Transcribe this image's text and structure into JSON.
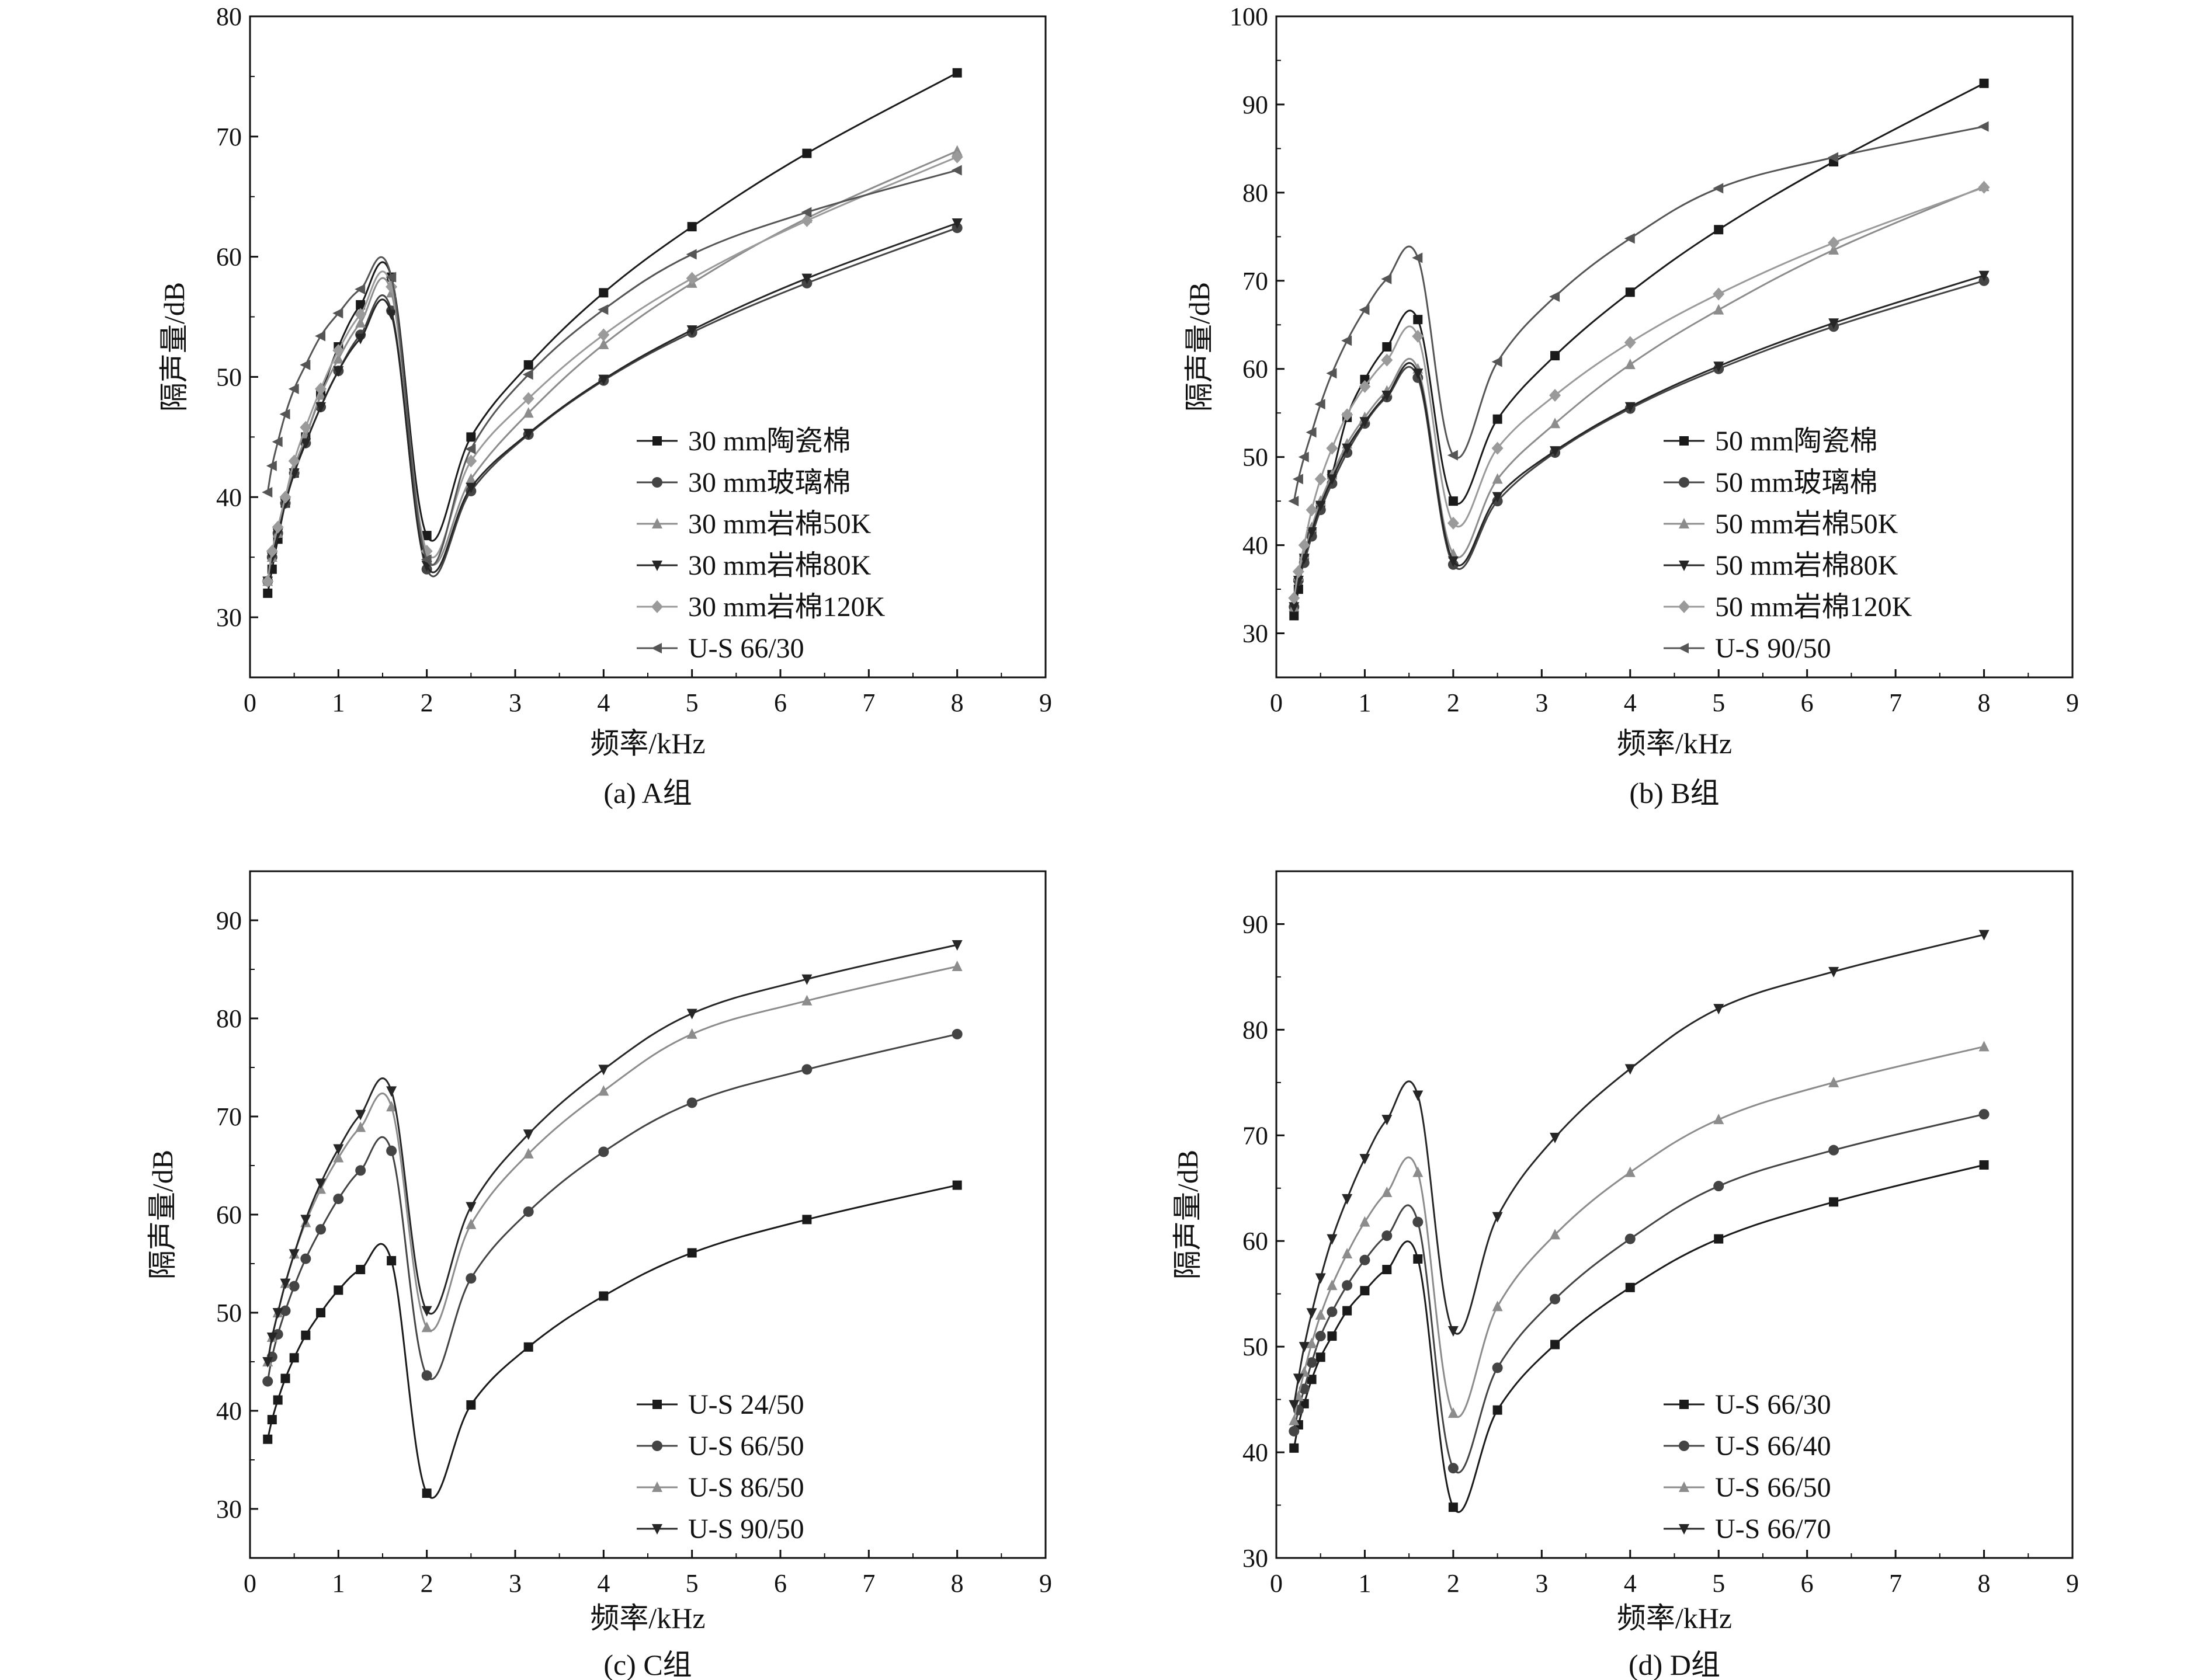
{
  "chart_data": [
    {
      "type": "line",
      "caption": "(a) A组",
      "xlabel": "频率/kHz",
      "ylabel": "隔声量/dB",
      "xlim": [
        0,
        9
      ],
      "ylim": [
        25,
        80
      ],
      "xticks": [
        0,
        1,
        2,
        3,
        4,
        5,
        6,
        7,
        8,
        9
      ],
      "yticks": [
        30,
        40,
        50,
        60,
        70,
        80
      ],
      "grid": false,
      "legend_position": "bottom-right",
      "x": [
        0.2,
        0.25,
        0.315,
        0.4,
        0.5,
        0.63,
        0.8,
        1,
        1.25,
        1.6,
        2,
        2.5,
        3.15,
        4,
        5,
        6.3,
        8
      ],
      "series": [
        {
          "name": "30 mm陶瓷棉",
          "marker": "square",
          "color": "#1a1a1a",
          "values": [
            32.0,
            34.0,
            36.5,
            39.5,
            42.0,
            45.0,
            48.5,
            52.5,
            56.0,
            58.3,
            36.8,
            45.0,
            51.0,
            57.0,
            62.5,
            68.6,
            75.3
          ]
        },
        {
          "name": "30 mm玻璃棉",
          "marker": "circle",
          "color": "#444444",
          "values": [
            33.0,
            35.0,
            37.0,
            39.5,
            42.0,
            44.5,
            47.5,
            50.5,
            53.5,
            55.5,
            34.0,
            40.5,
            45.2,
            49.7,
            53.7,
            57.8,
            62.4
          ]
        },
        {
          "name": "30 mm岩棉50K",
          "marker": "triangle-up",
          "color": "#8c8c8c",
          "values": [
            33.0,
            35.0,
            37.0,
            40.0,
            42.5,
            45.0,
            48.5,
            51.5,
            54.5,
            57.0,
            35.0,
            41.5,
            47.0,
            52.7,
            57.8,
            63.2,
            68.8
          ]
        },
        {
          "name": "30 mm岩棉80K",
          "marker": "triangle-down",
          "color": "#262626",
          "values": [
            33.0,
            35.0,
            37.0,
            39.5,
            42.0,
            44.5,
            47.5,
            50.5,
            53.2,
            55.2,
            34.3,
            40.8,
            45.3,
            49.8,
            53.9,
            58.2,
            62.8
          ]
        },
        {
          "name": "30 mm岩棉120K",
          "marker": "diamond",
          "color": "#9a9a9a",
          "values": [
            33.0,
            35.5,
            37.5,
            40.0,
            43.0,
            45.8,
            49.0,
            52.2,
            55.2,
            57.5,
            35.5,
            43.0,
            48.2,
            53.5,
            58.2,
            63.0,
            68.3
          ]
        },
        {
          "name": "U-S 66/30",
          "marker": "triangle-left",
          "color": "#555555",
          "values": [
            40.4,
            42.6,
            44.6,
            46.9,
            49.0,
            51.0,
            53.4,
            55.3,
            57.3,
            58.3,
            34.8,
            44.0,
            50.2,
            55.6,
            60.2,
            63.7,
            67.2
          ]
        }
      ]
    },
    {
      "type": "line",
      "caption": "(b) B组",
      "xlabel": "频率/kHz",
      "ylabel": "隔声量/dB",
      "xlim": [
        0,
        9
      ],
      "ylim": [
        25,
        100
      ],
      "xticks": [
        0,
        1,
        2,
        3,
        4,
        5,
        6,
        7,
        8,
        9
      ],
      "yticks": [
        30,
        40,
        50,
        60,
        70,
        80,
        90,
        100
      ],
      "grid": false,
      "legend_position": "bottom-right",
      "x": [
        0.2,
        0.25,
        0.315,
        0.4,
        0.5,
        0.63,
        0.8,
        1,
        1.25,
        1.6,
        2,
        2.5,
        3.15,
        4,
        5,
        6.3,
        8
      ],
      "series": [
        {
          "name": "50 mm陶瓷棉",
          "marker": "square",
          "color": "#1a1a1a",
          "values": [
            32.0,
            35.0,
            38.5,
            41.5,
            44.5,
            48.0,
            54.5,
            58.8,
            62.5,
            65.6,
            45.0,
            54.3,
            61.5,
            68.7,
            75.8,
            83.5,
            92.4
          ]
        },
        {
          "name": "50 mm玻璃棉",
          "marker": "circle",
          "color": "#444444",
          "values": [
            33.0,
            36.0,
            38.0,
            41.0,
            44.0,
            47.0,
            50.5,
            53.8,
            56.8,
            59.0,
            37.8,
            45.0,
            50.5,
            55.5,
            60.0,
            64.8,
            70.0
          ]
        },
        {
          "name": "50 mm岩棉50K",
          "marker": "triangle-up",
          "color": "#8c8c8c",
          "values": [
            33.0,
            36.5,
            39.0,
            42.0,
            45.0,
            48.0,
            51.5,
            54.5,
            57.5,
            60.0,
            39.0,
            47.5,
            53.8,
            60.5,
            66.7,
            73.5,
            80.7
          ]
        },
        {
          "name": "50 mm岩棉80K",
          "marker": "triangle-down",
          "color": "#262626",
          "values": [
            33.0,
            36.0,
            38.5,
            41.5,
            44.5,
            47.5,
            51.0,
            54.0,
            57.0,
            59.5,
            38.2,
            45.5,
            50.7,
            55.7,
            60.3,
            65.2,
            70.6
          ]
        },
        {
          "name": "50 mm岩棉120K",
          "marker": "diamond",
          "color": "#9a9a9a",
          "values": [
            34.0,
            37.0,
            40.0,
            44.0,
            47.5,
            51.0,
            54.8,
            58.0,
            61.0,
            63.7,
            42.5,
            51.0,
            57.0,
            63.0,
            68.5,
            74.3,
            80.6
          ]
        },
        {
          "name": "U-S 90/50",
          "marker": "triangle-left",
          "color": "#555555",
          "values": [
            45.0,
            47.5,
            50.0,
            52.8,
            56.0,
            59.5,
            63.2,
            66.7,
            70.2,
            72.6,
            50.2,
            60.8,
            68.2,
            74.8,
            80.5,
            84.0,
            87.5
          ]
        }
      ]
    },
    {
      "type": "line",
      "caption": "(c) C组",
      "xlabel": "频率/kHz",
      "ylabel": "隔声量/dB",
      "xlim": [
        0,
        9
      ],
      "ylim": [
        25,
        95
      ],
      "xticks": [
        0,
        1,
        2,
        3,
        4,
        5,
        6,
        7,
        8,
        9
      ],
      "yticks": [
        30,
        40,
        50,
        60,
        70,
        80,
        90
      ],
      "grid": false,
      "legend_position": "bottom-right",
      "x": [
        0.2,
        0.25,
        0.315,
        0.4,
        0.5,
        0.63,
        0.8,
        1,
        1.25,
        1.6,
        2,
        2.5,
        3.15,
        4,
        5,
        6.3,
        8
      ],
      "series": [
        {
          "name": "U-S 24/50",
          "marker": "square",
          "color": "#1a1a1a",
          "values": [
            37.1,
            39.1,
            41.1,
            43.3,
            45.4,
            47.7,
            50.0,
            52.3,
            54.4,
            55.3,
            31.6,
            40.6,
            46.5,
            51.7,
            56.1,
            59.5,
            63.0
          ]
        },
        {
          "name": "U-S 66/50",
          "marker": "circle",
          "color": "#444444",
          "values": [
            43.0,
            45.5,
            47.8,
            50.2,
            52.7,
            55.5,
            58.5,
            61.6,
            64.5,
            66.5,
            43.6,
            53.5,
            60.3,
            66.4,
            71.4,
            74.8,
            78.4
          ]
        },
        {
          "name": "U-S 86/50",
          "marker": "triangle-up",
          "color": "#8c8c8c",
          "values": [
            45.0,
            47.5,
            50.0,
            53.0,
            56.0,
            59.2,
            62.6,
            65.8,
            68.9,
            71.0,
            48.5,
            59.0,
            66.2,
            72.6,
            78.4,
            81.8,
            85.3
          ]
        },
        {
          "name": "U-S 90/50",
          "marker": "triangle-down",
          "color": "#262626",
          "values": [
            45.0,
            47.5,
            50.0,
            53.0,
            56.0,
            59.5,
            63.2,
            66.7,
            70.2,
            72.6,
            50.2,
            60.8,
            68.2,
            74.8,
            80.5,
            84.0,
            87.5
          ]
        }
      ]
    },
    {
      "type": "line",
      "caption": "(d) D组",
      "xlabel": "频率/kHz",
      "ylabel": "隔声量/dB",
      "xlim": [
        0,
        9
      ],
      "ylim": [
        30,
        95
      ],
      "xticks": [
        0,
        1,
        2,
        3,
        4,
        5,
        6,
        7,
        8,
        9
      ],
      "yticks": [
        30,
        40,
        50,
        60,
        70,
        80,
        90
      ],
      "grid": false,
      "legend_position": "bottom-right",
      "x": [
        0.2,
        0.25,
        0.315,
        0.4,
        0.5,
        0.63,
        0.8,
        1,
        1.25,
        1.6,
        2,
        2.5,
        3.15,
        4,
        5,
        6.3,
        8
      ],
      "series": [
        {
          "name": "U-S 66/30",
          "marker": "square",
          "color": "#1a1a1a",
          "values": [
            40.4,
            42.6,
            44.6,
            46.9,
            49.0,
            51.0,
            53.4,
            55.3,
            57.3,
            58.3,
            34.8,
            44.0,
            50.2,
            55.6,
            60.2,
            63.7,
            67.2
          ]
        },
        {
          "name": "U-S 66/40",
          "marker": "circle",
          "color": "#444444",
          "values": [
            42.0,
            44.0,
            46.0,
            48.5,
            51.0,
            53.3,
            55.8,
            58.2,
            60.5,
            61.8,
            38.5,
            48.0,
            54.5,
            60.2,
            65.2,
            68.6,
            72.0
          ]
        },
        {
          "name": "U-S 66/50",
          "marker": "triangle-up",
          "color": "#8c8c8c",
          "values": [
            43.0,
            45.3,
            47.6,
            50.3,
            53.0,
            55.8,
            58.8,
            61.8,
            64.6,
            66.5,
            43.7,
            53.8,
            60.6,
            66.5,
            71.5,
            75.0,
            78.4
          ]
        },
        {
          "name": "U-S 66/70",
          "marker": "triangle-down",
          "color": "#262626",
          "values": [
            44.5,
            47.0,
            50.0,
            53.2,
            56.5,
            60.2,
            64.0,
            67.8,
            71.5,
            73.8,
            51.5,
            62.3,
            69.8,
            76.3,
            82.0,
            85.5,
            89.0
          ]
        }
      ]
    }
  ]
}
